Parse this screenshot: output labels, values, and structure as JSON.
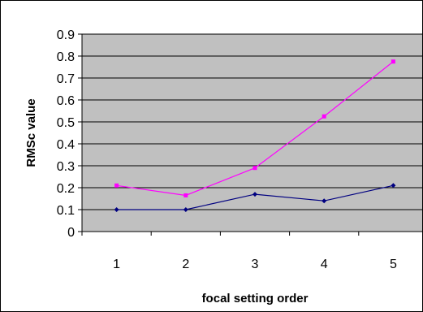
{
  "chart_data": {
    "type": "line",
    "title": "",
    "xlabel": "focal setting order",
    "ylabel": "RMSc value",
    "categories": [
      "1",
      "2",
      "3",
      "4",
      "5"
    ],
    "ylim": [
      0,
      0.9
    ],
    "yticks": [
      "0",
      "0.1",
      "0.2",
      "0.3",
      "0.4",
      "0.5",
      "0.6",
      "0.7",
      "0.8",
      "0.9"
    ],
    "grid": "horizontal",
    "plot_background": "#c0c0c0",
    "legend": "none",
    "series": [
      {
        "color": "#000080",
        "marker": "diamond",
        "values": [
          0.1,
          0.1,
          0.17,
          0.14,
          0.21
        ]
      },
      {
        "color": "#ff00ff",
        "marker": "square",
        "values": [
          0.21,
          0.165,
          0.29,
          0.525,
          0.775
        ]
      }
    ]
  }
}
